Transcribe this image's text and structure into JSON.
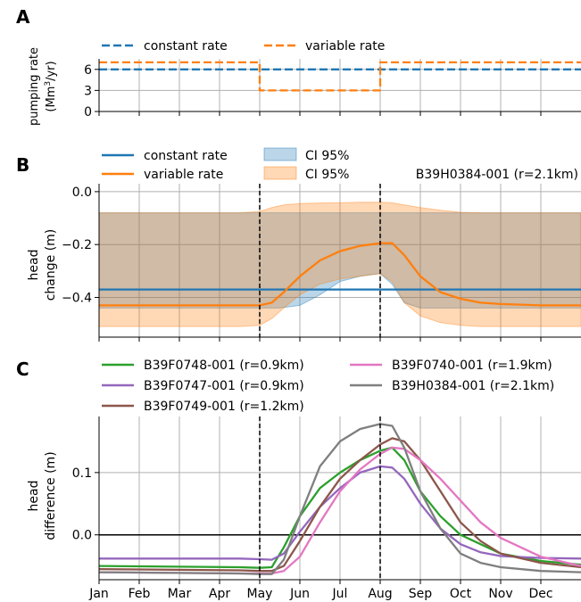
{
  "months": [
    "Jan",
    "Feb",
    "Mar",
    "Apr",
    "May",
    "Jun",
    "Jul",
    "Aug",
    "Sep",
    "Oct",
    "Nov",
    "Dec"
  ],
  "chart_data": [
    {
      "panel": "A",
      "type": "line",
      "ylabel_line1": "pumping rate",
      "ylabel_line2": "(Mm",
      "ylabel_sup": "3",
      "ylabel_end": "/yr)",
      "ylim": [
        0,
        7.5
      ],
      "yticks": [
        0,
        3,
        6
      ],
      "ytick_labels": [
        "0",
        "3",
        "6"
      ],
      "grid": true,
      "legend_position": "top",
      "series": [
        {
          "name": "constant rate",
          "color": "#1f77b4",
          "style": "dashed",
          "x": [
            0,
            12
          ],
          "y": [
            6,
            6
          ]
        },
        {
          "name": "variable rate",
          "color": "#ff7f0e",
          "style": "dashed",
          "x": [
            0,
            4,
            4,
            7,
            7,
            12
          ],
          "y": [
            7,
            7,
            3,
            3,
            7,
            7
          ]
        }
      ]
    },
    {
      "panel": "B",
      "type": "line",
      "ylabel_line1": "head",
      "ylabel_line2": "change (m)",
      "annotation": "B39H0384-001 (r=2.1km)",
      "ylim": [
        -0.55,
        0.03
      ],
      "yticks": [
        0.0,
        -0.2,
        -0.4
      ],
      "ytick_labels": [
        "0.0",
        "−0.2",
        "−0.4"
      ],
      "grid": true,
      "legend_position": "top",
      "vlines": [
        4,
        7
      ],
      "series": [
        {
          "name": "constant rate",
          "color": "#1f77b4",
          "x": [
            0,
            12
          ],
          "y": [
            -0.37,
            -0.37
          ]
        },
        {
          "name": "variable rate",
          "color": "#ff7f0e",
          "x": [
            0,
            3.5,
            4.0,
            4.3,
            4.6,
            5.0,
            5.5,
            6.0,
            6.5,
            7.0,
            7.3,
            7.6,
            8.0,
            8.5,
            9.0,
            9.5,
            10.0,
            11.0,
            12.0
          ],
          "y": [
            -0.43,
            -0.43,
            -0.43,
            -0.42,
            -0.38,
            -0.32,
            -0.26,
            -0.225,
            -0.205,
            -0.195,
            -0.195,
            -0.24,
            -0.32,
            -0.38,
            -0.405,
            -0.42,
            -0.425,
            -0.43,
            -0.43
          ]
        }
      ],
      "bands": [
        {
          "name": "CI 95%",
          "color": "#1f77b4",
          "opacity": 0.3,
          "x": [
            0,
            4.0,
            4.5,
            5.0,
            5.5,
            6.0,
            6.5,
            7.0,
            7.3,
            7.6,
            8.0,
            8.5,
            9.0,
            12.0
          ],
          "upper": [
            -0.08,
            -0.08,
            -0.08,
            -0.08,
            -0.08,
            -0.08,
            -0.08,
            -0.08,
            -0.08,
            -0.08,
            -0.08,
            -0.08,
            -0.08,
            -0.08
          ],
          "lower": [
            -0.44,
            -0.44,
            -0.44,
            -0.43,
            -0.39,
            -0.34,
            -0.32,
            -0.31,
            -0.35,
            -0.42,
            -0.44,
            -0.44,
            -0.44,
            -0.44
          ]
        },
        {
          "name": "CI 95%",
          "color": "#ff7f0e",
          "opacity": 0.3,
          "x": [
            0,
            3.5,
            4.0,
            4.3,
            4.6,
            5.0,
            5.5,
            6.0,
            6.5,
            7.0,
            7.3,
            7.6,
            8.0,
            8.5,
            9.0,
            9.5,
            10.0,
            11.0,
            12.0
          ],
          "upper": [
            -0.08,
            -0.08,
            -0.075,
            -0.06,
            -0.05,
            -0.045,
            -0.043,
            -0.042,
            -0.04,
            -0.04,
            -0.042,
            -0.05,
            -0.06,
            -0.07,
            -0.078,
            -0.08,
            -0.08,
            -0.08,
            -0.08
          ],
          "lower": [
            -0.51,
            -0.51,
            -0.505,
            -0.48,
            -0.44,
            -0.39,
            -0.35,
            -0.33,
            -0.32,
            -0.31,
            -0.34,
            -0.42,
            -0.47,
            -0.495,
            -0.505,
            -0.51,
            -0.51,
            -0.51,
            -0.51
          ]
        }
      ]
    },
    {
      "panel": "C",
      "type": "line",
      "ylabel_line1": "head",
      "ylabel_line2": "difference (m)",
      "ylim": [
        -0.072,
        0.19
      ],
      "yticks": [
        0.1,
        0.0
      ],
      "ytick_labels": [
        "0.1",
        "0.0"
      ],
      "grid": true,
      "legend_position": "top",
      "vlines": [
        4,
        7
      ],
      "hline": 0,
      "series": [
        {
          "name": "B39F0748-001 (r=0.9km)",
          "color": "#2ca02c",
          "x": [
            0,
            3.5,
            4.0,
            4.3,
            4.6,
            5.0,
            5.5,
            6.0,
            6.5,
            7.0,
            7.3,
            7.6,
            8.0,
            8.5,
            9.0,
            9.5,
            10.0,
            11.0,
            12.0
          ],
          "y": [
            -0.05,
            -0.052,
            -0.053,
            -0.052,
            -0.02,
            0.03,
            0.075,
            0.1,
            0.12,
            0.135,
            0.14,
            0.12,
            0.07,
            0.03,
            0.0,
            -0.015,
            -0.03,
            -0.042,
            -0.048
          ]
        },
        {
          "name": "B39F0747-001 (r=0.9km)",
          "color": "#9467bd",
          "x": [
            0,
            3.5,
            4.0,
            4.3,
            4.6,
            5.0,
            5.5,
            6.0,
            6.5,
            7.0,
            7.3,
            7.6,
            8.0,
            8.5,
            9.0,
            9.5,
            10.0,
            11.0,
            12.0
          ],
          "y": [
            -0.038,
            -0.038,
            -0.039,
            -0.04,
            -0.03,
            0.005,
            0.045,
            0.075,
            0.1,
            0.11,
            0.108,
            0.09,
            0.05,
            0.01,
            -0.015,
            -0.028,
            -0.034,
            -0.037,
            -0.038
          ]
        },
        {
          "name": "B39F0749-001 (r=1.2km)",
          "color": "#8c564b",
          "x": [
            0,
            3.5,
            4.0,
            4.3,
            4.6,
            5.0,
            5.5,
            6.0,
            6.5,
            7.0,
            7.3,
            7.6,
            8.0,
            8.5,
            9.0,
            9.5,
            10.0,
            11.0,
            12.0
          ],
          "y": [
            -0.055,
            -0.057,
            -0.058,
            -0.058,
            -0.05,
            -0.01,
            0.045,
            0.09,
            0.12,
            0.145,
            0.155,
            0.15,
            0.12,
            0.07,
            0.02,
            -0.01,
            -0.03,
            -0.045,
            -0.052
          ]
        },
        {
          "name": "B39F0740-001 (r=1.9km)",
          "color": "#e377c2",
          "x": [
            0,
            3.5,
            4.0,
            4.3,
            4.6,
            5.0,
            5.5,
            6.0,
            6.5,
            7.0,
            7.3,
            7.6,
            8.0,
            8.5,
            9.0,
            9.5,
            10.0,
            11.0,
            12.0
          ],
          "y": [
            -0.06,
            -0.062,
            -0.062,
            -0.062,
            -0.058,
            -0.035,
            0.02,
            0.07,
            0.105,
            0.13,
            0.14,
            0.138,
            0.12,
            0.09,
            0.055,
            0.02,
            -0.005,
            -0.035,
            -0.05
          ]
        },
        {
          "name": "B39H0384-001 (r=2.1km)",
          "color": "#7f7f7f",
          "x": [
            0,
            3.5,
            4.0,
            4.3,
            4.6,
            5.0,
            5.5,
            6.0,
            6.5,
            7.0,
            7.3,
            7.6,
            8.0,
            8.5,
            9.0,
            9.5,
            10.0,
            11.0,
            12.0
          ],
          "y": [
            -0.06,
            -0.062,
            -0.063,
            -0.063,
            -0.04,
            0.03,
            0.11,
            0.15,
            0.17,
            0.178,
            0.175,
            0.14,
            0.07,
            0.01,
            -0.03,
            -0.045,
            -0.052,
            -0.058,
            -0.06
          ]
        }
      ]
    }
  ],
  "panel_labels": [
    "A",
    "B",
    "C"
  ],
  "legend_A": {
    "constant": "constant rate",
    "variable": "variable rate"
  },
  "legend_B": {
    "constant": "constant rate",
    "variable": "variable rate",
    "ci1": "CI 95%",
    "ci2": "CI 95%"
  },
  "legend_C": [
    "B39F0748-001 (r=0.9km)",
    "B39F0747-001 (r=0.9km)",
    "B39F0749-001 (r=1.2km)",
    "B39F0740-001 (r=1.9km)",
    "B39H0384-001 (r=2.1km)"
  ]
}
